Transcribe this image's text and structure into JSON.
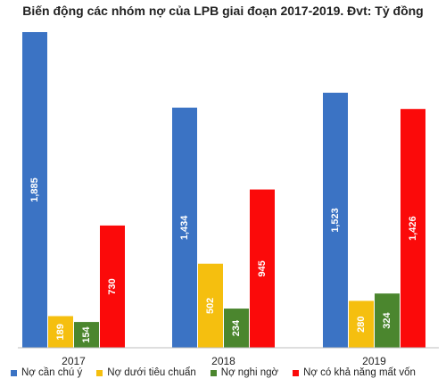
{
  "chart_data": {
    "type": "bar",
    "title": "Biến động các nhóm nợ của LPB giai đoạn 2017-2019. Đvt: Tỷ đồng",
    "categories": [
      "2017",
      "2018",
      "2019"
    ],
    "series": [
      {
        "name": "Nợ cần chú ý",
        "color": "#3b73c4",
        "values": [
          1885,
          1434,
          1523
        ],
        "labels": [
          "1,885",
          "1,434",
          "1,523"
        ]
      },
      {
        "name": "Nợ dưới tiêu chuẩn",
        "color": "#f5bf0f",
        "values": [
          189,
          502,
          280
        ],
        "labels": [
          "189",
          "502",
          "280"
        ]
      },
      {
        "name": "Nợ nghi ngờ",
        "color": "#4b862e",
        "values": [
          154,
          234,
          324
        ],
        "labels": [
          "154",
          "234",
          "324"
        ]
      },
      {
        "name": "Nợ có khả năng mất vốn",
        "color": "#fb0a0a",
        "values": [
          730,
          945,
          1426
        ],
        "labels": [
          "730",
          "945",
          "1,426"
        ]
      }
    ],
    "ylim": [
      0,
      1885
    ],
    "grid": false,
    "legend_position": "bottom"
  }
}
